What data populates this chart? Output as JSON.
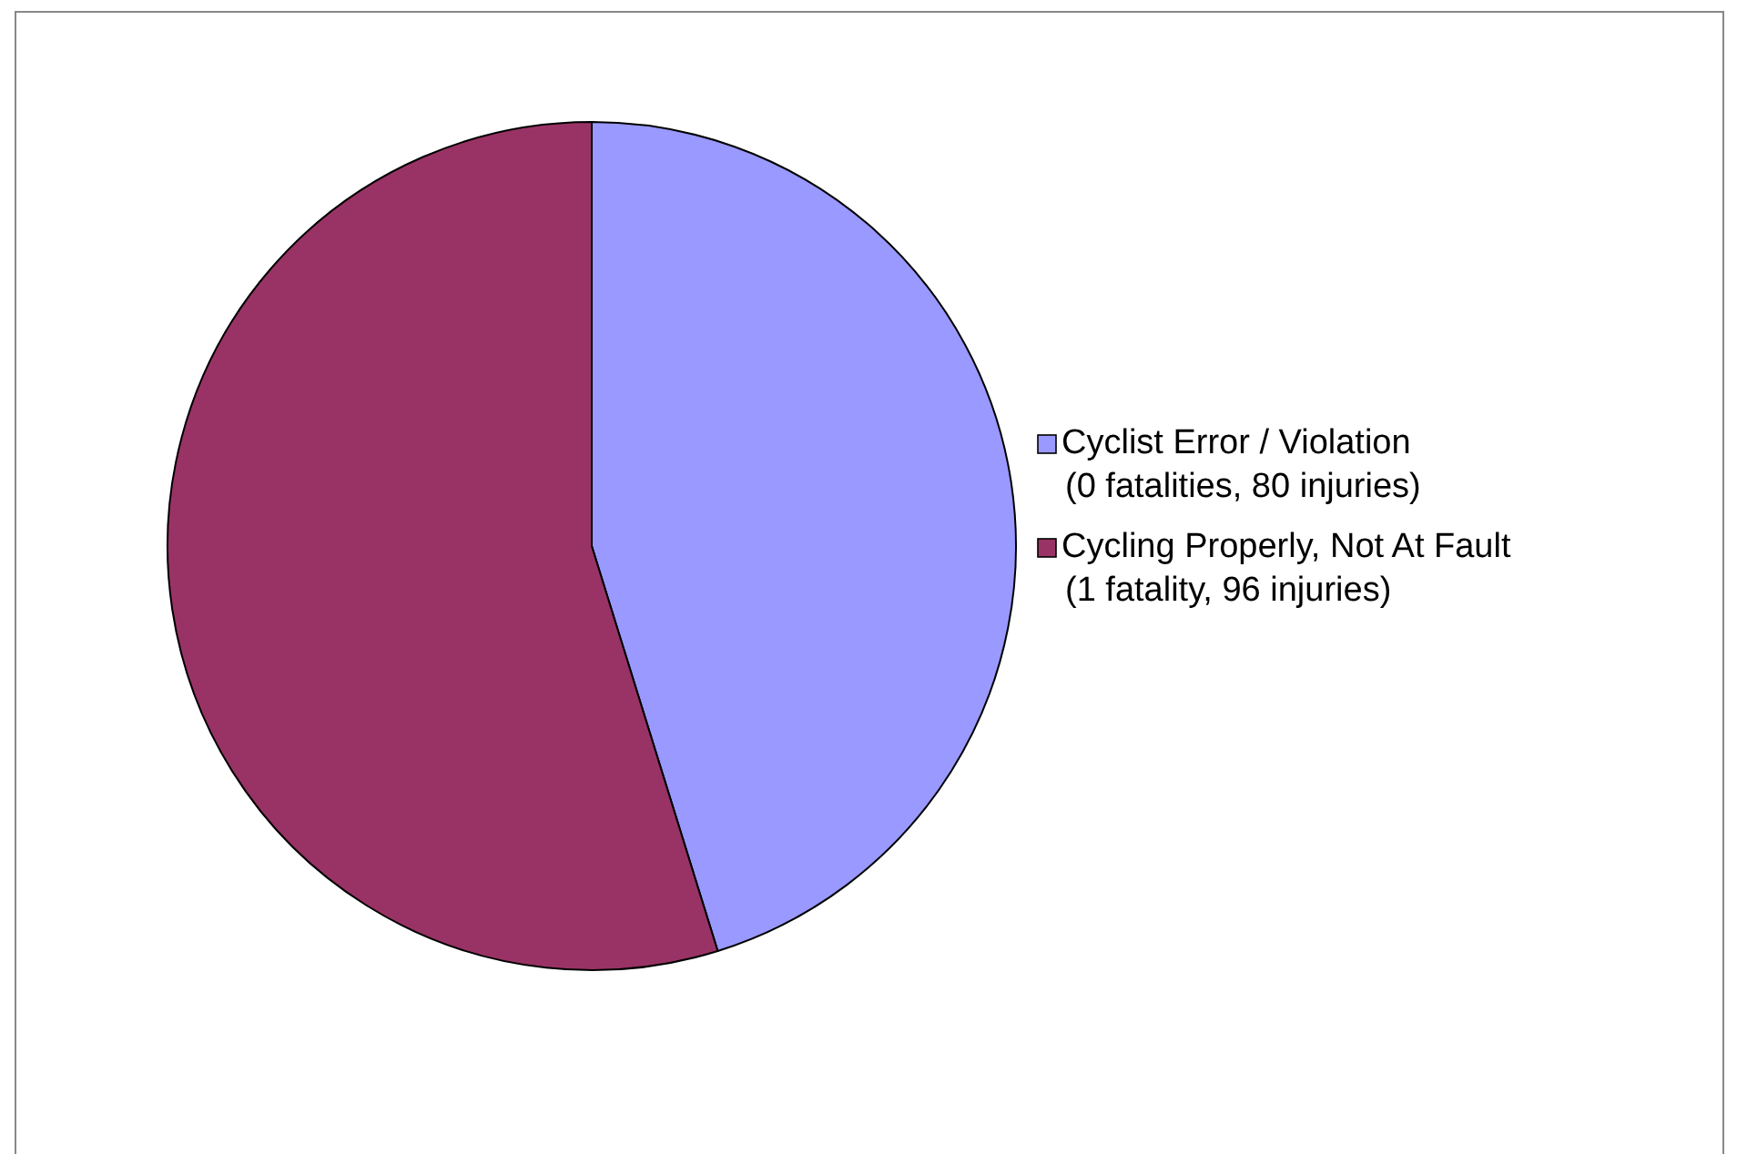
{
  "chart_data": {
    "type": "pie",
    "categories": [
      "Cyclist Error / Violation\n(0 fatalities, 80 injuries)",
      "Cycling Properly, Not At Fault\n(1 fatality, 96 injuries)"
    ],
    "values": [
      45.2,
      54.8
    ],
    "colors": [
      "#9999ff",
      "#993366"
    ],
    "legend": "right"
  }
}
